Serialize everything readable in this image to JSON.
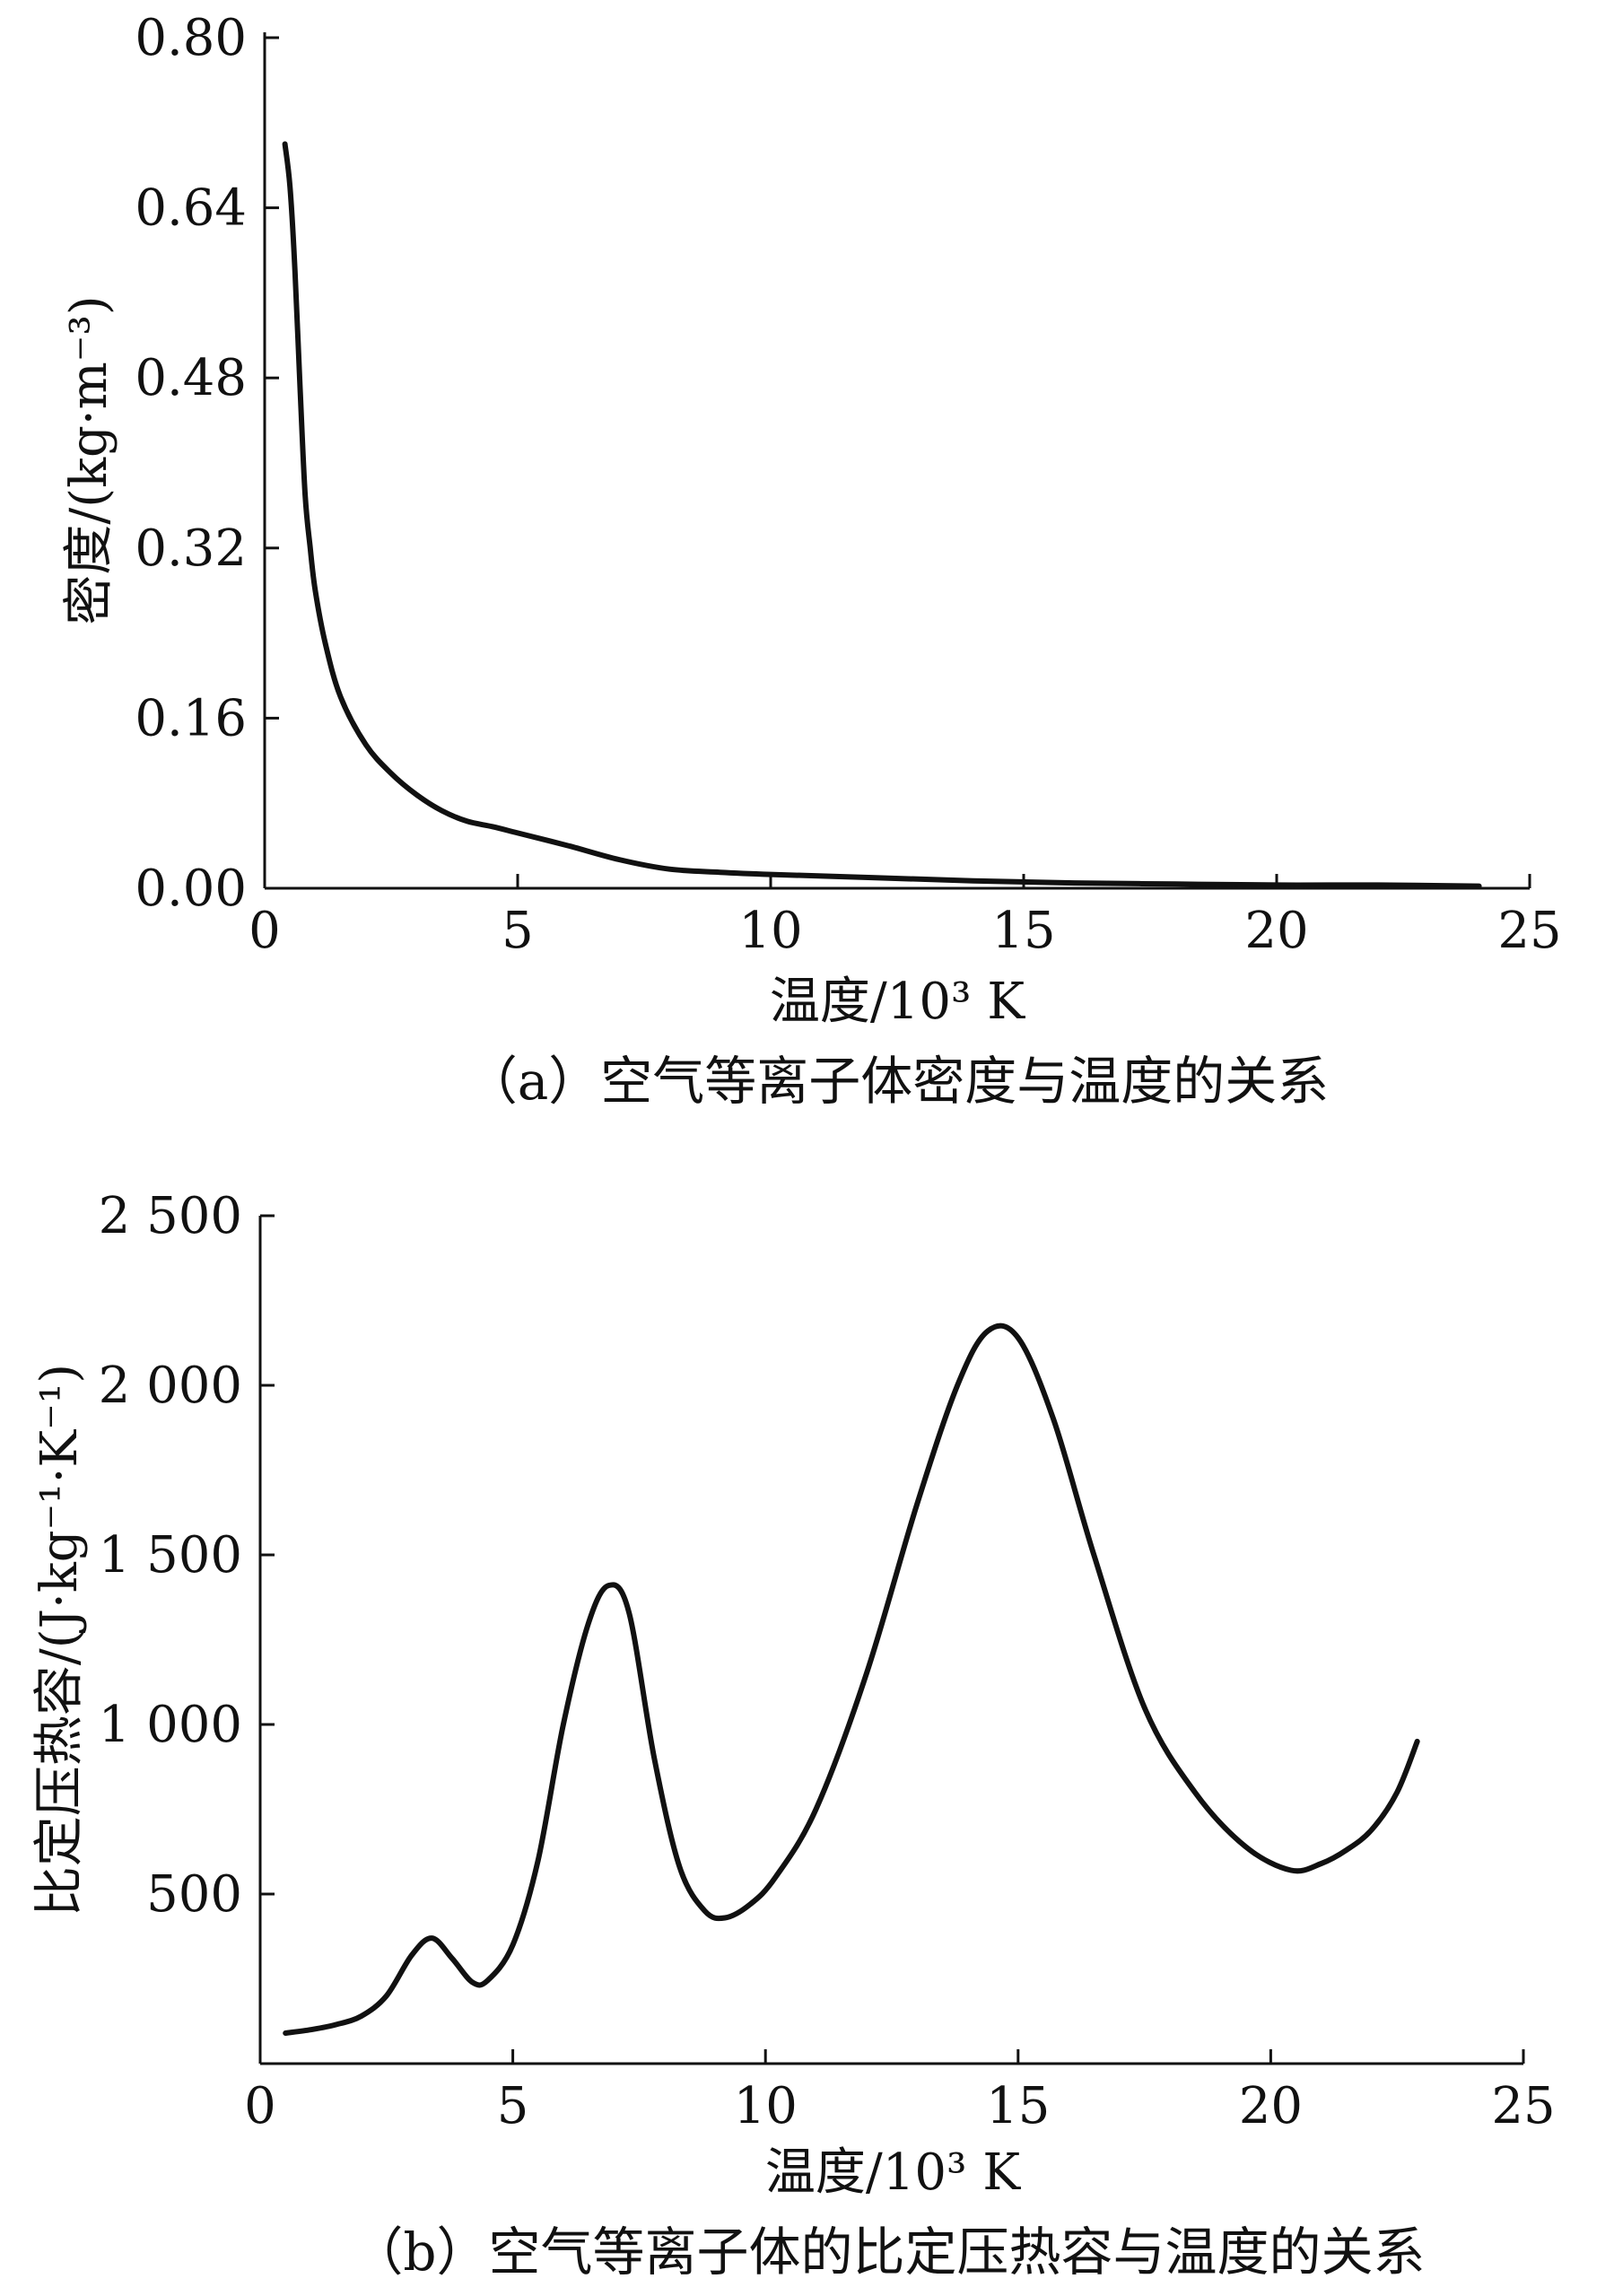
{
  "colors": {
    "line": "#111111",
    "axis": "#111111",
    "background": "#ffffff"
  },
  "chart_data": [
    {
      "type": "line",
      "xlabel": "温度/10³ K",
      "ylabel": "密度/(kg·m⁻³)",
      "caption": "（a）空气等离子体密度与温度的关系",
      "xlim": [
        0,
        25
      ],
      "ylim": [
        0,
        0.8
      ],
      "xticks": [
        0,
        5,
        10,
        15,
        20,
        25
      ],
      "xtick_labels": [
        "0",
        "5",
        "10",
        "15",
        "20",
        "25"
      ],
      "yticks": [
        0,
        0.16,
        0.32,
        0.48,
        0.64,
        0.8
      ],
      "ytick_labels": [
        "0.00",
        "0.16",
        "0.32",
        "0.48",
        "0.64",
        "0.80"
      ],
      "grid": false,
      "series": [
        {
          "x": [
            0.4,
            0.5,
            0.6,
            0.7,
            0.8,
            0.9,
            1.0,
            1.2,
            1.5,
            2.0,
            2.5,
            3.0,
            3.5,
            4.0,
            4.5,
            5.0,
            6.0,
            7.0,
            8.0,
            9.0,
            10.0,
            12.0,
            14.0,
            16.0,
            18.0,
            20.0,
            22.0,
            24.0
          ],
          "y": [
            0.7,
            0.66,
            0.58,
            0.47,
            0.37,
            0.32,
            0.28,
            0.23,
            0.18,
            0.135,
            0.108,
            0.088,
            0.073,
            0.063,
            0.058,
            0.052,
            0.04,
            0.027,
            0.018,
            0.015,
            0.013,
            0.01,
            0.007,
            0.005,
            0.004,
            0.003,
            0.003,
            0.002
          ]
        }
      ]
    },
    {
      "type": "line",
      "xlabel": "温度/10³ K",
      "ylabel": "比定压热容/(J·kg⁻¹·K⁻¹)",
      "caption": "（b）空气等离子体的比定压热容与温度的关系",
      "xlim": [
        0,
        25
      ],
      "ylim": [
        0,
        2500
      ],
      "xticks": [
        0,
        5,
        10,
        15,
        20,
        25
      ],
      "xtick_labels": [
        "0",
        "5",
        "10",
        "15",
        "20",
        "25"
      ],
      "yticks": [
        500,
        1000,
        1500,
        2000,
        2500
      ],
      "ytick_labels": [
        "500",
        "1 000",
        "1 500",
        "2 000",
        "2 500"
      ],
      "grid": false,
      "series": [
        {
          "x": [
            0.5,
            1.0,
            1.5,
            2.0,
            2.5,
            3.0,
            3.4,
            3.8,
            4.2,
            4.5,
            5.0,
            5.5,
            6.0,
            6.5,
            6.9,
            7.3,
            7.8,
            8.3,
            8.8,
            9.2,
            9.7,
            10.2,
            11.0,
            12.0,
            13.0,
            13.8,
            14.4,
            15.0,
            15.7,
            16.5,
            17.5,
            18.5,
            19.5,
            20.4,
            21.0,
            21.5,
            22.0,
            22.5,
            22.9
          ],
          "y": [
            90,
            100,
            115,
            140,
            200,
            320,
            370,
            310,
            240,
            245,
            350,
            600,
            1000,
            1300,
            1410,
            1330,
            900,
            580,
            450,
            430,
            470,
            550,
            750,
            1150,
            1650,
            2000,
            2160,
            2140,
            1900,
            1500,
            1050,
            800,
            640,
            570,
            590,
            630,
            690,
            800,
            950
          ]
        }
      ]
    }
  ]
}
